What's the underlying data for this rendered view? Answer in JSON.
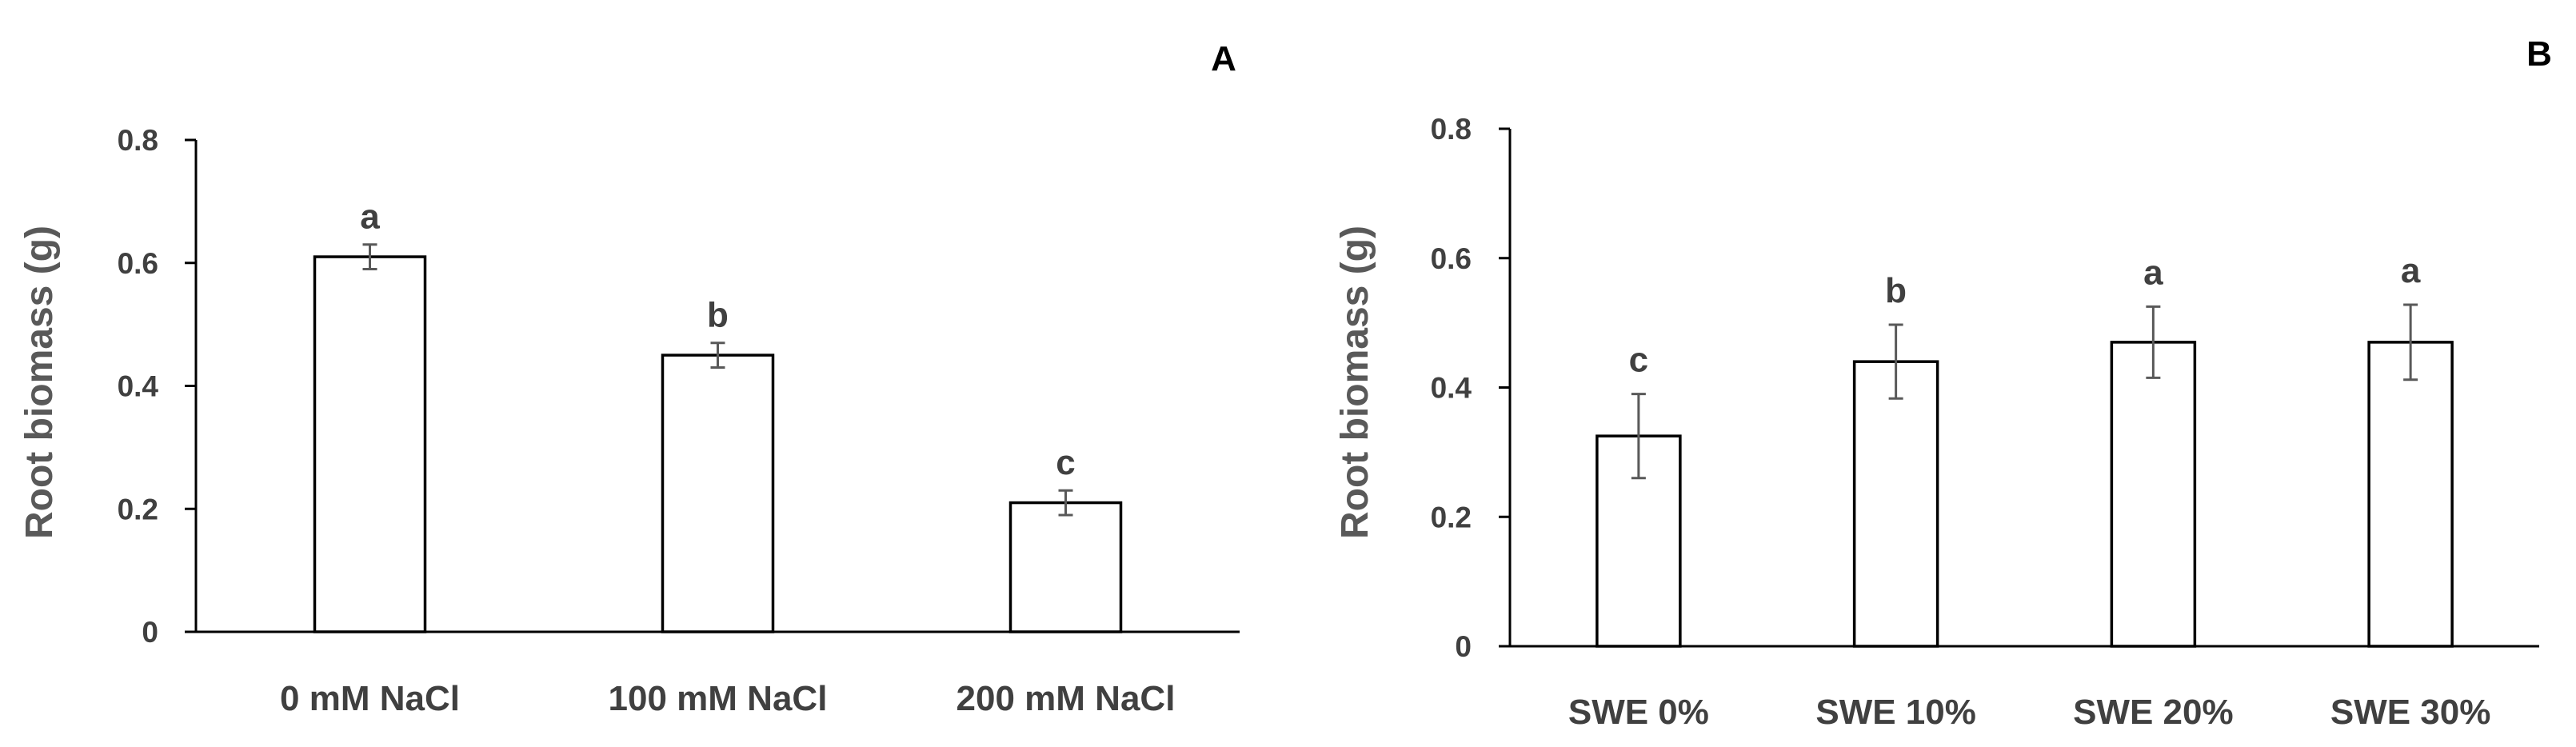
{
  "chart_data": [
    {
      "type": "bar",
      "panel_label": "A",
      "title": "",
      "xlabel": "",
      "ylabel": "Root  biomass (g)",
      "ylim": [
        0,
        0.8
      ],
      "yticks": [
        "0",
        "0.2",
        "0.4",
        "0.6",
        "0.8"
      ],
      "categories": [
        "0 mM NaCl",
        "100 mM NaCl",
        "200 mM NaCl"
      ],
      "values": [
        0.61,
        0.45,
        0.21
      ],
      "errors": [
        0.02,
        0.02,
        0.02
      ],
      "significance_labels": [
        "a",
        "b",
        "c"
      ],
      "grid": false
    },
    {
      "type": "bar",
      "panel_label": "B",
      "title": "",
      "xlabel": "",
      "ylabel": "Root biomass (g)",
      "ylim": [
        0,
        0.8
      ],
      "yticks": [
        "0",
        "0.2",
        "0.4",
        "0.6",
        "0.8"
      ],
      "categories": [
        "SWE 0%",
        "SWE 10%",
        "SWE 20%",
        "SWE 30%"
      ],
      "values": [
        0.325,
        0.44,
        0.47,
        0.47
      ],
      "errors": [
        0.065,
        0.057,
        0.055,
        0.058
      ],
      "significance_labels": [
        "c",
        "b",
        "a",
        "a"
      ],
      "grid": false
    }
  ],
  "colors": {
    "bar_fill": "#ffffff",
    "bar_stroke": "#000000",
    "axis": "#000000",
    "errorbar": "#595959",
    "text": "#404040"
  }
}
